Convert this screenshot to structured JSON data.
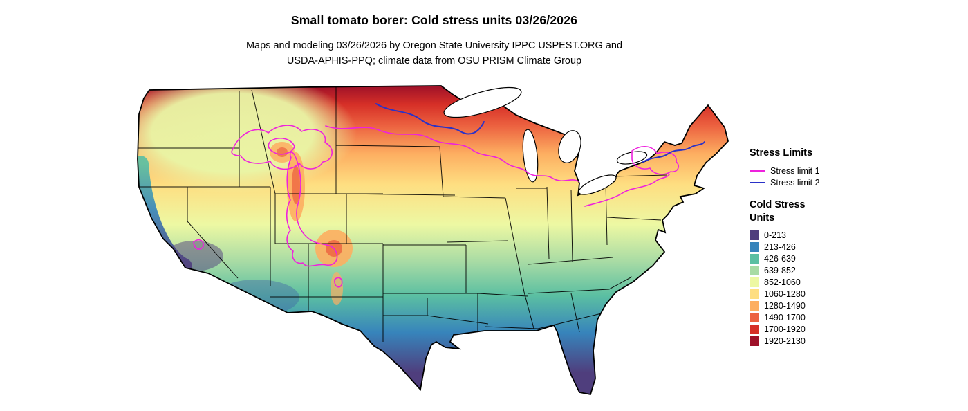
{
  "title": "Small tomato borer: Cold stress units 03/26/2026",
  "subtitle_line1": "Maps and modeling 03/26/2026 by Oregon State University IPPC USPEST.ORG and",
  "subtitle_line2": "USDA-APHIS-PPQ; climate data from OSU PRISM Climate Group",
  "map": {
    "region": "Contiguous United States",
    "overlay_lines": [
      "State borders",
      "Stress limit 1 contour",
      "Stress limit 2 contour"
    ],
    "water_color": "#ffffff",
    "border_color": "#000000"
  },
  "legend": {
    "stress_limits": {
      "title": "Stress Limits",
      "items": [
        {
          "label": "Stress limit 1",
          "color": "#ee22dd"
        },
        {
          "label": "Stress limit 2",
          "color": "#2a32c8"
        }
      ]
    },
    "cold_stress": {
      "title_line1": "Cold Stress",
      "title_line2": "Units",
      "items": [
        {
          "label": "0-213",
          "color": "#4f3e7d"
        },
        {
          "label": "213-426",
          "color": "#3784bb"
        },
        {
          "label": "426-639",
          "color": "#5bbfa2"
        },
        {
          "label": "639-852",
          "color": "#a8dba4"
        },
        {
          "label": "852-1060",
          "color": "#edf8a3"
        },
        {
          "label": "1060-1280",
          "color": "#fede81"
        },
        {
          "label": "1280-1490",
          "color": "#fdae61"
        },
        {
          "label": "1490-1700",
          "color": "#ec6240"
        },
        {
          "label": "1700-1920",
          "color": "#d62f27"
        },
        {
          "label": "1920-2130",
          "color": "#9e1129"
        }
      ]
    }
  }
}
